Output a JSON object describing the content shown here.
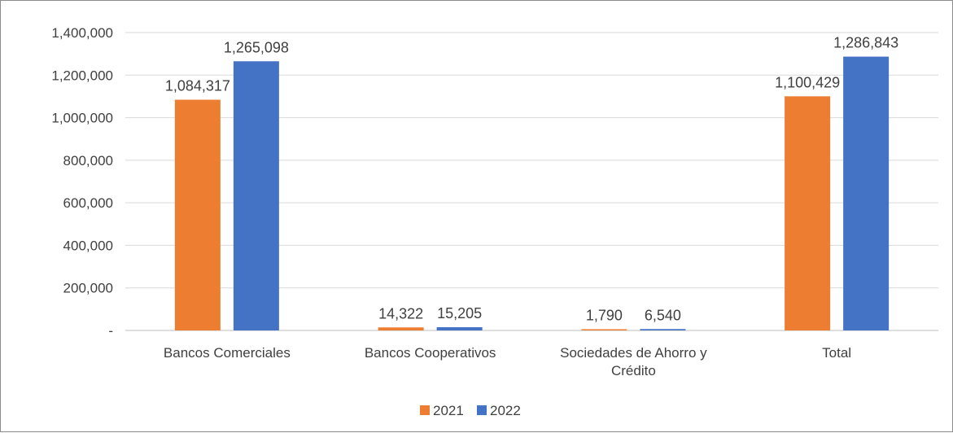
{
  "chart_data": {
    "type": "bar",
    "categories": [
      "Bancos Comerciales",
      "Bancos Cooperativos",
      "Sociedades de Ahorro y Crédito",
      "Total"
    ],
    "category_label_lines": [
      [
        "Bancos Comerciales"
      ],
      [
        "Bancos Cooperativos"
      ],
      [
        "Sociedades de Ahorro y",
        "Crédito"
      ],
      [
        "Total"
      ]
    ],
    "series": [
      {
        "name": "2021",
        "color": "#ED7D31",
        "values": [
          1084317,
          14322,
          1790,
          1100429
        ],
        "labels": [
          "1,084,317",
          "14,322",
          "1,790",
          "1,100,429"
        ]
      },
      {
        "name": "2022",
        "color": "#4472C4",
        "values": [
          1265098,
          15205,
          6540,
          1286843
        ],
        "labels": [
          "1,265,098",
          "15,205",
          "6,540",
          "1,286,843"
        ]
      }
    ],
    "ylim": [
      0,
      1400000
    ],
    "yticks": [
      0,
      200000,
      400000,
      600000,
      800000,
      1000000,
      1200000,
      1400000
    ],
    "ytick_labels": [
      "-",
      "200,000",
      "400,000",
      "600,000",
      "800,000",
      "1,000,000",
      "1,200,000",
      "1,400,000"
    ],
    "grid": true,
    "legend_position": "bottom",
    "title": "",
    "xlabel": "",
    "ylabel": ""
  }
}
